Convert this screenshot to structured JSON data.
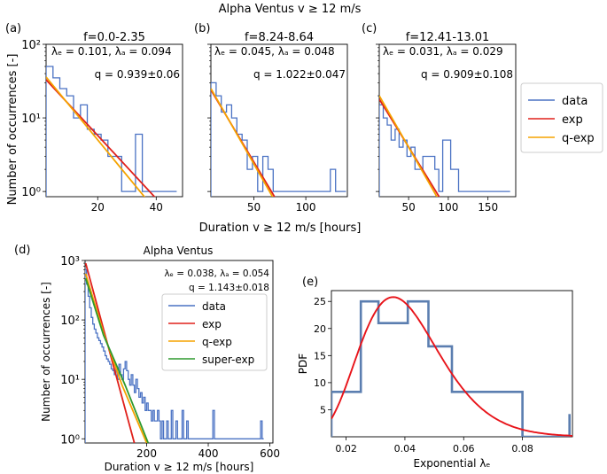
{
  "suptitle": "Alpha Ventus  v  ≥  12 m/s",
  "top_ylabel": "Number of occurrences [-]",
  "top_xlabel": "Duration v  ≥  12 m/s [hours]",
  "legend_top": [
    "data",
    "exp",
    "q-exp"
  ],
  "colors": {
    "data": "#4a72c4",
    "exp": "#e0201b",
    "qexp": "#f5a300",
    "superexp": "#2e9a2e",
    "pdf_hist": "#5b7eb0",
    "pdf_curve": "#e8141a"
  },
  "chart_data": [
    {
      "id": "a",
      "panel_label": "(a)",
      "type": "line",
      "yscale": "log",
      "title": "f=0.0-2.35",
      "ann1": "λₑ = 0.101,  λₐ = 0.094",
      "ann2": "q = 0.939±0.06",
      "xlim": [
        2.35,
        49
      ],
      "ylim": [
        0.85,
        100
      ],
      "xticks": [
        20,
        40
      ],
      "yticks": [
        1,
        10,
        100
      ],
      "ytick_labels": [
        "10⁰",
        "10¹",
        "10²"
      ],
      "series": [
        {
          "name": "data",
          "kind": "step",
          "edges": [
            2.35,
            4.7,
            7.05,
            9.4,
            11.75,
            14.1,
            16.45,
            18.8,
            21.15,
            23.5,
            25.85,
            28.2,
            30.55,
            32.9,
            35.25,
            37.6,
            39.95,
            42.3,
            44.65,
            47.0
          ],
          "values": [
            50,
            35,
            25,
            20,
            10,
            15,
            7,
            6,
            5,
            3,
            3,
            1,
            1,
            6,
            1,
            1,
            1,
            1,
            1
          ]
        },
        {
          "name": "exp",
          "kind": "line",
          "x": [
            2.35,
            40
          ],
          "y": [
            33,
            0.8
          ]
        },
        {
          "name": "q-exp",
          "kind": "line",
          "x": [
            2.35,
            36.5
          ],
          "y": [
            36,
            0.8
          ]
        }
      ]
    },
    {
      "id": "b",
      "panel_label": "(b)",
      "type": "line",
      "yscale": "log",
      "title": "f=8.24-8.64",
      "ann1": "λₑ = 0.045,  λₐ = 0.048",
      "ann2": "q = 1.022±0.047",
      "xlim": [
        8.64,
        140
      ],
      "ylim": [
        0.85,
        100
      ],
      "xticks": [
        50,
        100
      ],
      "yticks": [
        1,
        10,
        100
      ],
      "ytick_labels": [
        "",
        "",
        ""
      ],
      "series": [
        {
          "name": "data",
          "kind": "step",
          "edges": [
            8.64,
            13.64,
            18.64,
            23.64,
            28.64,
            33.64,
            38.64,
            43.64,
            48.64,
            53.64,
            58.64,
            63.64,
            68.64,
            73.64,
            78.64,
            83.64,
            88.64,
            93.64,
            98.64,
            103.64,
            108.64,
            113.64,
            118.64,
            123.64,
            128.64,
            133.64,
            138.64
          ],
          "values": [
            30,
            20,
            12,
            15,
            10,
            6,
            5,
            2,
            3,
            1,
            3,
            2,
            1,
            1,
            1,
            1,
            1,
            1,
            1,
            1,
            1,
            1,
            1,
            2,
            1,
            1
          ]
        },
        {
          "name": "exp",
          "kind": "line",
          "x": [
            8.64,
            71
          ],
          "y": [
            24,
            0.8
          ]
        },
        {
          "name": "q-exp",
          "kind": "line",
          "x": [
            8.64,
            69
          ],
          "y": [
            25,
            0.8
          ]
        }
      ]
    },
    {
      "id": "c",
      "panel_label": "(c)",
      "type": "line",
      "yscale": "log",
      "title": "f=12.41-13.01",
      "ann1": "λₑ = 0.031,  λₐ = 0.029",
      "ann2": "q = 0.909±0.108",
      "xlim": [
        13.01,
        185
      ],
      "ylim": [
        0.85,
        100
      ],
      "xticks": [
        50,
        100,
        150
      ],
      "yticks": [
        1,
        10,
        100
      ],
      "ytick_labels": [
        "",
        "",
        ""
      ],
      "series": [
        {
          "name": "data",
          "kind": "step",
          "edges": [
            13.01,
            18.01,
            23.01,
            28.01,
            33.01,
            38.01,
            43.01,
            48.01,
            53.01,
            58.01,
            63.01,
            68.01,
            73.01,
            78.01,
            83.01,
            88.01,
            93.01,
            98.01,
            103.01,
            108.01,
            113.01,
            118.01,
            123.01,
            128.01,
            133.01,
            138.01,
            143.01,
            148.01,
            153.01,
            158.01,
            163.01,
            168.01,
            173.01,
            178.01
          ],
          "values": [
            15,
            10,
            8,
            5,
            7,
            4,
            5,
            3,
            4,
            2,
            2,
            3,
            3,
            3,
            2,
            1,
            5,
            5,
            2,
            2,
            1,
            1,
            1,
            1,
            1,
            1,
            1,
            1,
            1,
            1,
            1,
            1,
            1
          ]
        },
        {
          "name": "exp",
          "kind": "line",
          "x": [
            13.01,
            90
          ],
          "y": [
            18,
            0.8
          ]
        },
        {
          "name": "q-exp",
          "kind": "line",
          "x": [
            13.01,
            87
          ],
          "y": [
            20,
            0.8
          ]
        }
      ]
    },
    {
      "id": "d",
      "panel_label": "(d)",
      "type": "line",
      "yscale": "log",
      "title": "Alpha Ventus",
      "ann1": "λₑ = 0.038,  λₐ = 0.054",
      "ann2": "q = 1.143±0.018",
      "xlabel": "Duration v  ≥  12 m/s [hours]",
      "ylabel": "Number of occurrences [-]",
      "legend": [
        "data",
        "exp",
        "q-exp",
        "super-exp"
      ],
      "xlim": [
        0,
        610
      ],
      "ylim": [
        0.85,
        1000
      ],
      "xticks": [
        200,
        400,
        600
      ],
      "yticks": [
        1,
        10,
        100,
        1000
      ],
      "ytick_labels": [
        "10⁰",
        "10¹",
        "10²",
        "10³"
      ],
      "series": [
        {
          "name": "data",
          "kind": "step",
          "edges": [
            0,
            5,
            10,
            15,
            20,
            25,
            30,
            35,
            40,
            45,
            50,
            55,
            60,
            65,
            70,
            75,
            80,
            85,
            90,
            95,
            100,
            105,
            110,
            115,
            120,
            125,
            130,
            135,
            140,
            145,
            150,
            155,
            160,
            165,
            170,
            175,
            180,
            185,
            190,
            195,
            200,
            205,
            210,
            215,
            220,
            225,
            230,
            235,
            240,
            245,
            250,
            255,
            260,
            265,
            270,
            275,
            280,
            285,
            290,
            295,
            300,
            305,
            310,
            315,
            320,
            325,
            330,
            335,
            340,
            345,
            350,
            355,
            360,
            365,
            370,
            375,
            380,
            385,
            390,
            395,
            400,
            405,
            410,
            415,
            420,
            425,
            430,
            435,
            440,
            445,
            450,
            455,
            460,
            465,
            470,
            475,
            480,
            485,
            490,
            495,
            500,
            505,
            510,
            515,
            520,
            525,
            530,
            535,
            540,
            545,
            550,
            555,
            560,
            565,
            570,
            575,
            580
          ],
          "values": [
            700,
            400,
            250,
            160,
            110,
            85,
            70,
            60,
            50,
            45,
            40,
            35,
            30,
            25,
            22,
            20,
            18,
            15,
            14,
            12,
            15,
            10,
            18,
            12,
            10,
            15,
            20,
            14,
            10,
            8,
            12,
            8,
            6,
            10,
            7,
            5,
            6,
            4,
            5,
            3,
            4,
            3,
            3,
            2,
            3,
            2,
            2,
            3,
            2,
            1,
            2,
            1,
            1,
            2,
            1,
            1,
            3,
            1,
            1,
            2,
            1,
            1,
            1,
            3,
            1,
            1,
            2,
            1,
            1,
            1,
            1,
            1,
            1,
            1,
            1,
            1,
            1,
            1,
            1,
            1,
            1,
            1,
            1,
            3,
            1,
            1,
            1,
            1,
            1,
            1,
            1,
            1,
            1,
            1,
            1,
            1,
            1,
            1,
            1,
            1,
            1,
            1,
            1,
            1,
            1,
            1,
            1,
            1,
            1,
            1,
            1,
            1,
            1,
            1,
            2,
            1
          ]
        },
        {
          "name": "exp",
          "kind": "line",
          "x": [
            2,
            160
          ],
          "y": [
            900,
            0.85
          ]
        },
        {
          "name": "q-exp",
          "kind": "line",
          "x": [
            2,
            60,
            120,
            200
          ],
          "y": [
            600,
            60,
            8,
            0.85
          ]
        },
        {
          "name": "super-exp",
          "kind": "line",
          "x": [
            2,
            60,
            130,
            205
          ],
          "y": [
            500,
            55,
            8,
            0.85
          ]
        }
      ]
    },
    {
      "id": "e",
      "panel_label": "(e)",
      "type": "line",
      "yscale": "linear",
      "xlabel": "Exponential λₑ",
      "ylabel": "PDF",
      "xlim": [
        0.015,
        0.097
      ],
      "ylim": [
        0,
        27
      ],
      "xticks": [
        0.02,
        0.04,
        0.06,
        0.08
      ],
      "yticks": [
        5,
        10,
        15,
        20,
        25
      ],
      "series": [
        {
          "name": "histogram",
          "kind": "step",
          "edges": [
            0.015,
            0.025,
            0.031,
            0.041,
            0.048,
            0.056,
            0.08,
            0.096
          ],
          "values": [
            8.3,
            25,
            21,
            25,
            16.7,
            8.3,
            0
          ]
        },
        {
          "name": "histogram-end",
          "kind": "vline",
          "x": 0.096,
          "y": [
            0,
            4.2
          ]
        },
        {
          "name": "pdf",
          "kind": "curve",
          "peak_x": 0.036,
          "peak_y": 25.8
        }
      ]
    }
  ]
}
